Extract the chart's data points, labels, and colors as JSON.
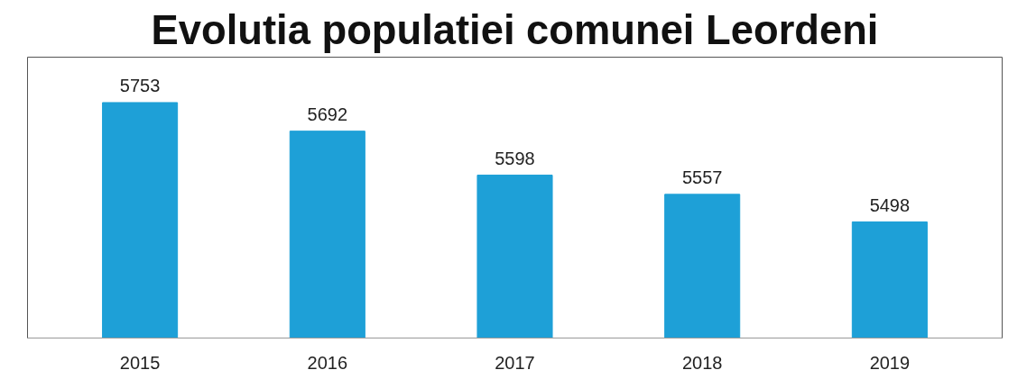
{
  "chart_data": {
    "type": "bar",
    "title": "Evolutia populatiei comunei Leordeni",
    "categories": [
      "2015",
      "2016",
      "2017",
      "2018",
      "2019"
    ],
    "values": [
      5753,
      5692,
      5598,
      5557,
      5498
    ],
    "color": "#1ea0d7",
    "ylim": [
      5250,
      5850
    ],
    "data_labels": true,
    "grid": false,
    "tick_labels": "x"
  }
}
